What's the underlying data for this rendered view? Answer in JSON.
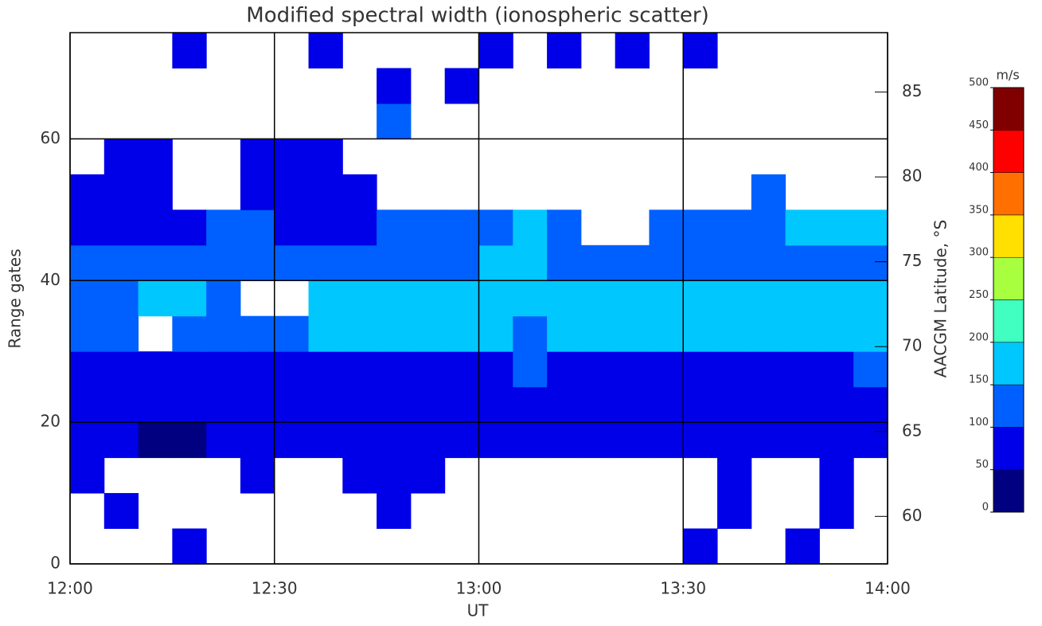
{
  "chart_data": {
    "type": "heatmap",
    "title": "Modified spectral width (ionospheric scatter)",
    "xlabel": "UT",
    "ylabel": "Range gates",
    "y2label": "AACGM Latitude, °S",
    "xlim": [
      "12:00",
      "14:00"
    ],
    "xticks": [
      "12:00",
      "12:30",
      "13:00",
      "13:30",
      "14:00"
    ],
    "ylim": [
      0,
      75
    ],
    "yticks": [
      0,
      20,
      40,
      60
    ],
    "y2lim": [
      57.2,
      88.5
    ],
    "y2ticks": [
      60,
      65,
      70,
      75,
      80,
      85
    ],
    "grid": true,
    "x_bins": [
      "12:00",
      "12:05",
      "12:10",
      "12:15",
      "12:20",
      "12:25",
      "12:30",
      "12:35",
      "12:40",
      "12:45",
      "12:50",
      "12:55",
      "13:00",
      "13:05",
      "13:10",
      "13:15",
      "13:20",
      "13:25",
      "13:30",
      "13:35",
      "13:40",
      "13:45",
      "13:50",
      "13:55",
      "14:00"
    ],
    "y_bins": [
      0,
      5,
      10,
      15,
      20,
      25,
      30,
      35,
      40,
      45,
      50,
      55,
      60,
      65,
      70,
      75
    ],
    "values": [
      [
        null,
        null,
        null,
        70,
        null,
        null,
        null,
        null,
        null,
        null,
        null,
        null,
        null,
        null,
        null,
        null,
        null,
        null,
        80,
        null,
        null,
        60,
        null,
        null
      ],
      [
        null,
        80,
        null,
        null,
        null,
        null,
        null,
        null,
        null,
        90,
        null,
        null,
        null,
        null,
        null,
        null,
        null,
        null,
        null,
        70,
        null,
        null,
        80,
        null
      ],
      [
        60,
        null,
        null,
        null,
        null,
        80,
        null,
        null,
        60,
        60,
        70,
        null,
        null,
        null,
        null,
        null,
        null,
        null,
        null,
        70,
        null,
        null,
        90,
        null
      ],
      [
        60,
        50,
        45,
        45,
        50,
        55,
        60,
        60,
        65,
        70,
        65,
        70,
        70,
        60,
        55,
        55,
        60,
        60,
        55,
        55,
        55,
        55,
        55,
        55
      ],
      [
        70,
        75,
        70,
        70,
        70,
        65,
        60,
        60,
        70,
        75,
        70,
        70,
        75,
        70,
        65,
        65,
        65,
        60,
        60,
        65,
        65,
        70,
        70,
        75
      ],
      [
        90,
        95,
        95,
        90,
        90,
        80,
        75,
        80,
        85,
        90,
        90,
        95,
        95,
        100,
        90,
        85,
        85,
        80,
        80,
        85,
        90,
        95,
        95,
        100
      ],
      [
        110,
        100,
        null,
        110,
        105,
        120,
        130,
        150,
        160,
        165,
        165,
        160,
        150,
        140,
        150,
        155,
        160,
        165,
        160,
        155,
        160,
        160,
        165,
        170
      ],
      [
        120,
        140,
        150,
        160,
        130,
        null,
        null,
        150,
        160,
        165,
        170,
        170,
        160,
        165,
        160,
        160,
        165,
        160,
        160,
        155,
        165,
        165,
        160,
        165
      ],
      [
        100,
        110,
        120,
        110,
        100,
        110,
        100,
        110,
        120,
        130,
        140,
        145,
        150,
        150,
        140,
        145,
        140,
        140,
        140,
        135,
        130,
        140,
        140,
        145
      ],
      [
        90,
        95,
        90,
        90,
        100,
        100,
        90,
        90,
        95,
        100,
        110,
        120,
        130,
        150,
        140,
        null,
        null,
        130,
        130,
        140,
        140,
        150,
        150,
        150
      ],
      [
        80,
        80,
        85,
        null,
        null,
        90,
        90,
        80,
        85,
        null,
        null,
        null,
        null,
        null,
        null,
        null,
        null,
        null,
        null,
        null,
        130,
        null,
        null,
        null
      ],
      [
        null,
        80,
        80,
        null,
        null,
        75,
        80,
        80,
        null,
        null,
        null,
        null,
        null,
        null,
        null,
        null,
        null,
        null,
        null,
        null,
        null,
        null,
        null,
        null
      ],
      [
        null,
        null,
        null,
        null,
        null,
        null,
        null,
        null,
        null,
        100,
        null,
        null,
        null,
        null,
        null,
        null,
        null,
        null,
        null,
        null,
        null,
        null,
        null,
        null
      ],
      [
        null,
        null,
        null,
        null,
        null,
        null,
        null,
        null,
        null,
        90,
        null,
        90,
        null,
        null,
        null,
        null,
        null,
        null,
        null,
        null,
        null,
        null,
        null,
        null
      ],
      [
        null,
        null,
        null,
        80,
        null,
        null,
        null,
        90,
        null,
        null,
        null,
        null,
        90,
        null,
        90,
        null,
        90,
        null,
        90,
        null,
        null,
        null,
        null,
        null
      ]
    ],
    "colorbar": {
      "label": "m/s",
      "ticks": [
        0,
        50,
        100,
        150,
        200,
        250,
        300,
        350,
        400,
        450,
        500
      ],
      "colors": [
        "#000080",
        "#0000e8",
        "#0060ff",
        "#00c8ff",
        "#40ffc0",
        "#a8ff40",
        "#ffe000",
        "#ff7000",
        "#ff0000",
        "#800000"
      ]
    }
  }
}
